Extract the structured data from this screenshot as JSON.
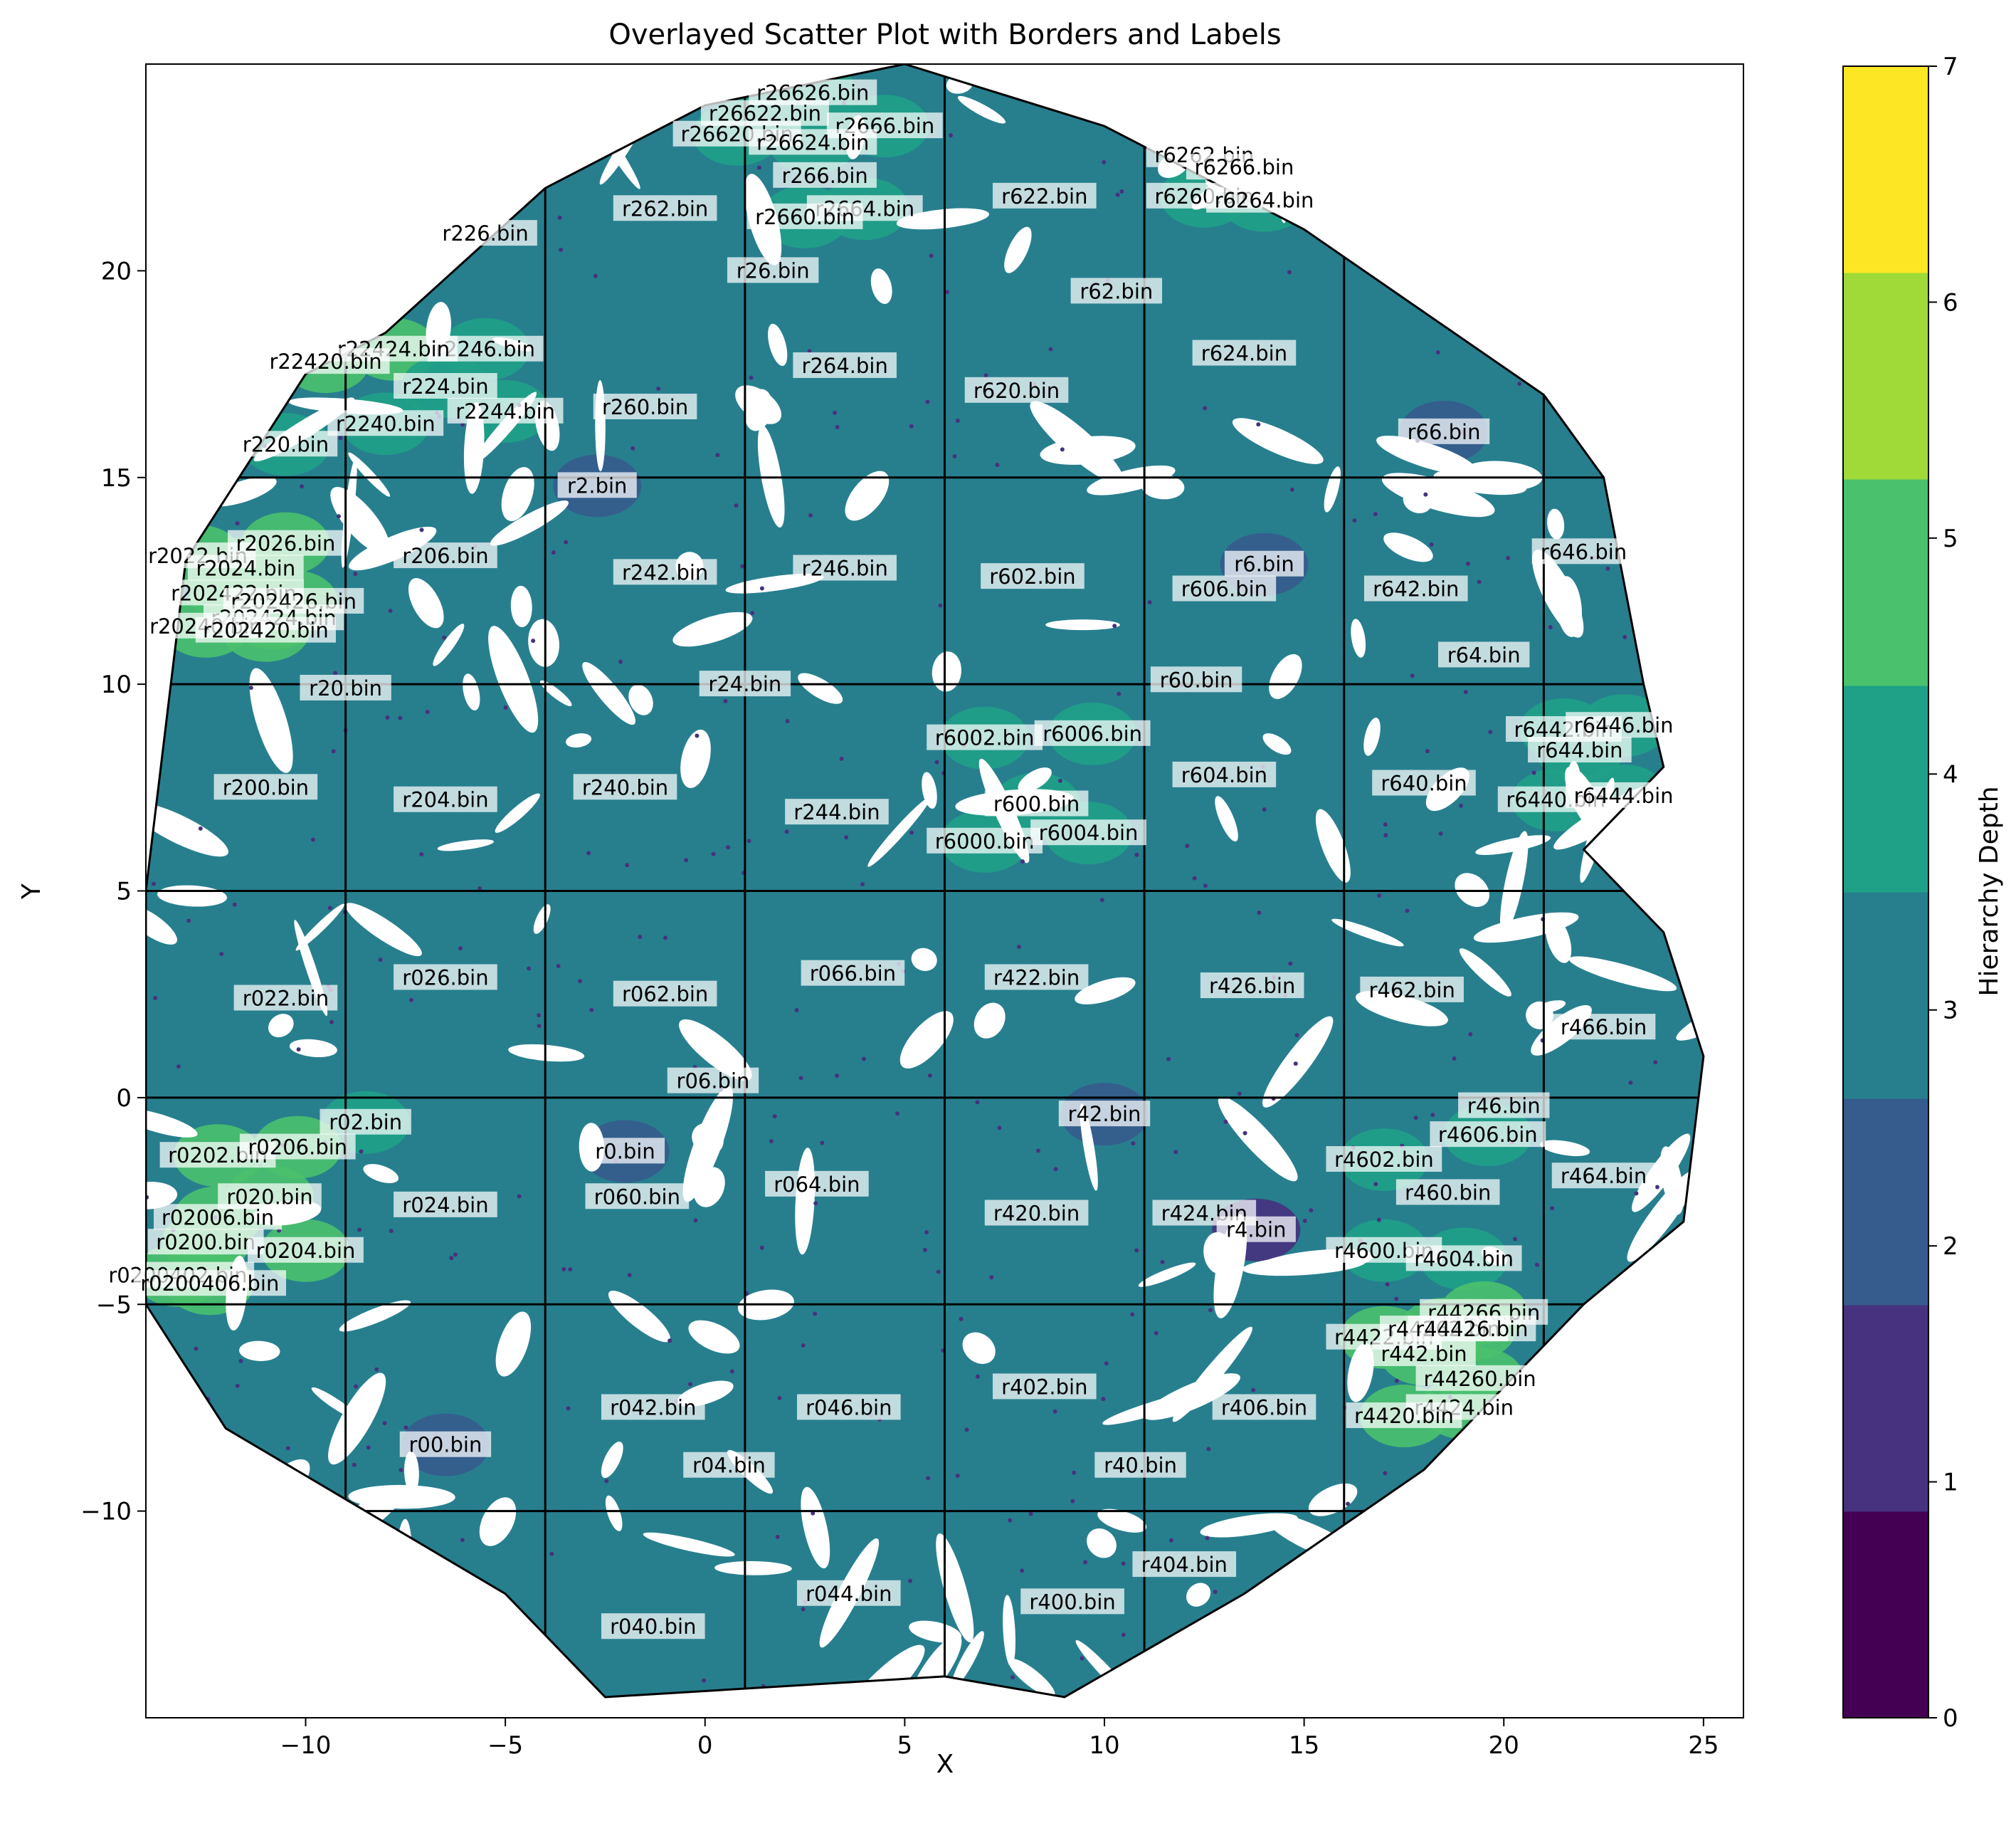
{
  "chart_data": {
    "type": "scatter",
    "title": "Overlayed Scatter Plot with Borders and Labels",
    "xlabel": "X",
    "ylabel": "Y",
    "xlim": [
      -14,
      26
    ],
    "ylim": [
      -15,
      25
    ],
    "xticks": [
      -10,
      -5,
      0,
      5,
      10,
      15,
      20,
      25
    ],
    "yticks": [
      -10,
      -5,
      0,
      5,
      10,
      15,
      20
    ],
    "xtick_labels": [
      "−10",
      "−5",
      "0",
      "5",
      "10",
      "15",
      "20",
      "25"
    ],
    "ytick_labels": [
      "−10",
      "−5",
      "0",
      "5",
      "10",
      "15",
      "20"
    ],
    "grid": false,
    "colorbar": {
      "label": "Hierarchy Depth",
      "colormap": "viridis",
      "range": [
        0,
        7
      ],
      "ticks": [
        0,
        1,
        2,
        3,
        4,
        5,
        6,
        7
      ],
      "tick_labels": [
        "0",
        "1",
        "2",
        "3",
        "4",
        "5",
        "6",
        "7"
      ],
      "bands": [
        "#440154",
        "#46327e",
        "#365c8d",
        "#277f8e",
        "#1fa187",
        "#4ac16d",
        "#a0da39",
        "#fde725"
      ]
    },
    "depth_colors": {
      "1": "#46327e",
      "2": "#365c8d",
      "3": "#277f8e",
      "4": "#1fa187",
      "5": "#4ac16d"
    },
    "border_x": [
      -9,
      -4,
      1,
      6,
      11,
      16,
      21
    ],
    "border_y": [
      15,
      10,
      5,
      0,
      -5,
      -10
    ],
    "hull": [
      [
        -14,
        5
      ],
      [
        -13,
        13
      ],
      [
        -10,
        17.5
      ],
      [
        -8,
        18.5
      ],
      [
        -4,
        22
      ],
      [
        0,
        24
      ],
      [
        5,
        25
      ],
      [
        10,
        23.5
      ],
      [
        13,
        22
      ],
      [
        15,
        21
      ],
      [
        21,
        17
      ],
      [
        22.5,
        15
      ],
      [
        23.5,
        10
      ],
      [
        24,
        8
      ],
      [
        22,
        6
      ],
      [
        24,
        4
      ],
      [
        25,
        1
      ],
      [
        24.5,
        -3
      ],
      [
        22,
        -5
      ],
      [
        18,
        -9
      ],
      [
        13.5,
        -12
      ],
      [
        9,
        -14.5
      ],
      [
        6,
        -14
      ],
      [
        -2.5,
        -14.5
      ],
      [
        -5,
        -12
      ],
      [
        -12,
        -8
      ],
      [
        -14,
        -5
      ],
      [
        -14,
        0
      ]
    ],
    "regions": [
      {
        "label": "r26626.bin",
        "x": 2.7,
        "y": 24.3,
        "depth": 4
      },
      {
        "label": "r26622.bin",
        "x": 1.5,
        "y": 23.8,
        "depth": 4
      },
      {
        "label": "r2666.bin",
        "x": 4.5,
        "y": 23.5,
        "depth": 4
      },
      {
        "label": "r26620.bin",
        "x": 0.8,
        "y": 23.3,
        "depth": 4
      },
      {
        "label": "r26624.bin",
        "x": 2.7,
        "y": 23.1,
        "depth": 4
      },
      {
        "label": "r266.bin",
        "x": 3.0,
        "y": 22.3,
        "depth": 3
      },
      {
        "label": "r2664.bin",
        "x": 4.0,
        "y": 21.5,
        "depth": 4
      },
      {
        "label": "r2660.bin",
        "x": 2.5,
        "y": 21.3,
        "depth": 4
      },
      {
        "label": "r262.bin",
        "x": -1.0,
        "y": 21.5,
        "depth": 3
      },
      {
        "label": "r226.bin",
        "x": -5.5,
        "y": 20.9,
        "depth": 3
      },
      {
        "label": "r26.bin",
        "x": 1.7,
        "y": 20.0,
        "depth": 3
      },
      {
        "label": "r622.bin",
        "x": 8.5,
        "y": 21.8,
        "depth": 3
      },
      {
        "label": "r6262.bin",
        "x": 12.5,
        "y": 22.8,
        "depth": 4
      },
      {
        "label": "r6266.bin",
        "x": 13.5,
        "y": 22.5,
        "depth": 4
      },
      {
        "label": "r6260.bin",
        "x": 12.5,
        "y": 21.8,
        "depth": 4
      },
      {
        "label": "r6264.bin",
        "x": 14.0,
        "y": 21.7,
        "depth": 4
      },
      {
        "label": "r62.bin",
        "x": 10.3,
        "y": 19.5,
        "depth": 3
      },
      {
        "label": "r624.bin",
        "x": 13.5,
        "y": 18.0,
        "depth": 3
      },
      {
        "label": "r620.bin",
        "x": 7.8,
        "y": 17.1,
        "depth": 3
      },
      {
        "label": "r264.bin",
        "x": 3.5,
        "y": 17.7,
        "depth": 3
      },
      {
        "label": "r260.bin",
        "x": -1.5,
        "y": 16.7,
        "depth": 3
      },
      {
        "label": "r2246.bin",
        "x": -5.5,
        "y": 18.1,
        "depth": 4
      },
      {
        "label": "r22424.bin",
        "x": -7.8,
        "y": 18.1,
        "depth": 5
      },
      {
        "label": "r22420.bin",
        "x": -9.5,
        "y": 17.8,
        "depth": 5
      },
      {
        "label": "r224.bin",
        "x": -6.5,
        "y": 17.2,
        "depth": 4
      },
      {
        "label": "r2244.bin",
        "x": -5.0,
        "y": 16.6,
        "depth": 4
      },
      {
        "label": "r2240.bin",
        "x": -8.0,
        "y": 16.3,
        "depth": 4
      },
      {
        "label": "r220.bin",
        "x": -10.5,
        "y": 15.8,
        "depth": 4
      },
      {
        "label": "r66.bin",
        "x": 18.5,
        "y": 16.1,
        "depth": 2
      },
      {
        "label": "r2.bin",
        "x": -2.7,
        "y": 14.8,
        "depth": 2
      },
      {
        "label": "r2022.bin",
        "x": -12.7,
        "y": 13.1,
        "depth": 5
      },
      {
        "label": "r2026.bin",
        "x": -10.5,
        "y": 13.4,
        "depth": 5
      },
      {
        "label": "r2024.bin",
        "x": -11.5,
        "y": 12.8,
        "depth": 5
      },
      {
        "label": "r202422.bin",
        "x": -11.8,
        "y": 12.2,
        "depth": 5
      },
      {
        "label": "r202426.bin",
        "x": -10.3,
        "y": 12.0,
        "depth": 5
      },
      {
        "label": "r202424.bin",
        "x": -10.8,
        "y": 11.6,
        "depth": 5
      },
      {
        "label": "r20240.bin",
        "x": -12.5,
        "y": 11.4,
        "depth": 5
      },
      {
        "label": "r202420.bin",
        "x": -11.0,
        "y": 11.3,
        "depth": 5
      },
      {
        "label": "r206.bin",
        "x": -6.5,
        "y": 13.1,
        "depth": 3
      },
      {
        "label": "r242.bin",
        "x": -1.0,
        "y": 12.7,
        "depth": 3
      },
      {
        "label": "r246.bin",
        "x": 3.5,
        "y": 12.8,
        "depth": 3
      },
      {
        "label": "r602.bin",
        "x": 8.2,
        "y": 12.6,
        "depth": 3
      },
      {
        "label": "r6.bin",
        "x": 14.0,
        "y": 12.9,
        "depth": 2
      },
      {
        "label": "r606.bin",
        "x": 13.0,
        "y": 12.3,
        "depth": 3
      },
      {
        "label": "r642.bin",
        "x": 17.8,
        "y": 12.3,
        "depth": 3
      },
      {
        "label": "r646.bin",
        "x": 22.0,
        "y": 13.2,
        "depth": 3
      },
      {
        "label": "r64.bin",
        "x": 19.5,
        "y": 10.7,
        "depth": 3
      },
      {
        "label": "r20.bin",
        "x": -9.0,
        "y": 9.9,
        "depth": 3
      },
      {
        "label": "r24.bin",
        "x": 1.0,
        "y": 10.0,
        "depth": 3
      },
      {
        "label": "r60.bin",
        "x": 12.3,
        "y": 10.1,
        "depth": 3
      },
      {
        "label": "r6002.bin",
        "x": 7.0,
        "y": 8.7,
        "depth": 4
      },
      {
        "label": "r6006.bin",
        "x": 9.7,
        "y": 8.8,
        "depth": 4
      },
      {
        "label": "r6442.bin",
        "x": 21.5,
        "y": 8.9,
        "depth": 4
      },
      {
        "label": "r6446.bin",
        "x": 23.0,
        "y": 9.0,
        "depth": 4
      },
      {
        "label": "r644.bin",
        "x": 21.9,
        "y": 8.4,
        "depth": 4
      },
      {
        "label": "r604.bin",
        "x": 13.0,
        "y": 7.8,
        "depth": 3
      },
      {
        "label": "r640.bin",
        "x": 18.0,
        "y": 7.6,
        "depth": 3
      },
      {
        "label": "r6440.bin",
        "x": 21.3,
        "y": 7.2,
        "depth": 4
      },
      {
        "label": "r6444.bin",
        "x": 23.0,
        "y": 7.3,
        "depth": 4
      },
      {
        "label": "r200.bin",
        "x": -11.0,
        "y": 7.5,
        "depth": 3
      },
      {
        "label": "r204.bin",
        "x": -6.5,
        "y": 7.2,
        "depth": 3
      },
      {
        "label": "r240.bin",
        "x": -2.0,
        "y": 7.5,
        "depth": 3
      },
      {
        "label": "r244.bin",
        "x": 3.3,
        "y": 6.9,
        "depth": 3
      },
      {
        "label": "r600.bin",
        "x": 8.3,
        "y": 7.1,
        "depth": 4
      },
      {
        "label": "r6000.bin",
        "x": 7.0,
        "y": 6.2,
        "depth": 4
      },
      {
        "label": "r6004.bin",
        "x": 9.6,
        "y": 6.4,
        "depth": 4
      },
      {
        "label": "r022.bin",
        "x": -10.5,
        "y": 2.4,
        "depth": 3
      },
      {
        "label": "r026.bin",
        "x": -6.5,
        "y": 2.9,
        "depth": 3
      },
      {
        "label": "r062.bin",
        "x": -1.0,
        "y": 2.5,
        "depth": 3
      },
      {
        "label": "r066.bin",
        "x": 3.7,
        "y": 3.0,
        "depth": 3
      },
      {
        "label": "r422.bin",
        "x": 8.3,
        "y": 2.9,
        "depth": 3
      },
      {
        "label": "r426.bin",
        "x": 13.7,
        "y": 2.7,
        "depth": 3
      },
      {
        "label": "r462.bin",
        "x": 17.7,
        "y": 2.6,
        "depth": 3
      },
      {
        "label": "r466.bin",
        "x": 22.5,
        "y": 1.7,
        "depth": 3
      },
      {
        "label": "r06.bin",
        "x": 0.2,
        "y": 0.4,
        "depth": 3
      },
      {
        "label": "r02.bin",
        "x": -8.5,
        "y": -0.6,
        "depth": 4
      },
      {
        "label": "r0202.bin",
        "x": -12.2,
        "y": -1.4,
        "depth": 5
      },
      {
        "label": "r0206.bin",
        "x": -10.2,
        "y": -1.2,
        "depth": 5
      },
      {
        "label": "r020.bin",
        "x": -10.9,
        "y": -2.4,
        "depth": 5
      },
      {
        "label": "r02006.bin",
        "x": -12.2,
        "y": -2.9,
        "depth": 5
      },
      {
        "label": "r0200.bin",
        "x": -12.5,
        "y": -3.5,
        "depth": 5
      },
      {
        "label": "r0204.bin",
        "x": -10.0,
        "y": -3.7,
        "depth": 5
      },
      {
        "label": "r0200402.bin",
        "x": -13.2,
        "y": -4.3,
        "depth": 5
      },
      {
        "label": "r0200406.bin",
        "x": -12.4,
        "y": -4.5,
        "depth": 5
      },
      {
        "label": "r0.bin",
        "x": -2.0,
        "y": -1.3,
        "depth": 2
      },
      {
        "label": "r42.bin",
        "x": 10.0,
        "y": -0.4,
        "depth": 2
      },
      {
        "label": "r46.bin",
        "x": 20.0,
        "y": -0.2,
        "depth": 3
      },
      {
        "label": "r4606.bin",
        "x": 19.6,
        "y": -0.9,
        "depth": 4
      },
      {
        "label": "r4602.bin",
        "x": 17.0,
        "y": -1.5,
        "depth": 4
      },
      {
        "label": "r464.bin",
        "x": 22.5,
        "y": -1.9,
        "depth": 3
      },
      {
        "label": "r024.bin",
        "x": -6.5,
        "y": -2.6,
        "depth": 3
      },
      {
        "label": "r060.bin",
        "x": -1.7,
        "y": -2.4,
        "depth": 3
      },
      {
        "label": "r064.bin",
        "x": 2.8,
        "y": -2.1,
        "depth": 3
      },
      {
        "label": "r420.bin",
        "x": 8.3,
        "y": -2.8,
        "depth": 3
      },
      {
        "label": "r424.bin",
        "x": 12.5,
        "y": -2.8,
        "depth": 3
      },
      {
        "label": "r4.bin",
        "x": 13.8,
        "y": -3.2,
        "depth": 1
      },
      {
        "label": "r460.bin",
        "x": 18.6,
        "y": -2.3,
        "depth": 3
      },
      {
        "label": "r4600.bin",
        "x": 17.0,
        "y": -3.7,
        "depth": 4
      },
      {
        "label": "r4604.bin",
        "x": 19.0,
        "y": -3.9,
        "depth": 4
      },
      {
        "label": "r44266.bin",
        "x": 19.5,
        "y": -5.2,
        "depth": 5
      },
      {
        "label": "r4422.bin",
        "x": 17.0,
        "y": -5.8,
        "depth": 5
      },
      {
        "label": "r44262.bin",
        "x": 18.5,
        "y": -5.6,
        "depth": 5
      },
      {
        "label": "r44426.bin",
        "x": 19.2,
        "y": -5.6,
        "depth": 5
      },
      {
        "label": "r442.bin",
        "x": 18.0,
        "y": -6.2,
        "depth": 5
      },
      {
        "label": "r44260.bin",
        "x": 19.4,
        "y": -6.8,
        "depth": 5
      },
      {
        "label": "r4424.bin",
        "x": 19.0,
        "y": -7.5,
        "depth": 5
      },
      {
        "label": "r4420.bin",
        "x": 17.5,
        "y": -7.7,
        "depth": 5
      },
      {
        "label": "r042.bin",
        "x": -1.3,
        "y": -7.5,
        "depth": 3
      },
      {
        "label": "r046.bin",
        "x": 3.6,
        "y": -7.5,
        "depth": 3
      },
      {
        "label": "r402.bin",
        "x": 8.5,
        "y": -7.0,
        "depth": 3
      },
      {
        "label": "r406.bin",
        "x": 14.0,
        "y": -7.5,
        "depth": 3
      },
      {
        "label": "r00.bin",
        "x": -6.5,
        "y": -8.4,
        "depth": 2
      },
      {
        "label": "r04.bin",
        "x": 0.6,
        "y": -8.9,
        "depth": 3
      },
      {
        "label": "r40.bin",
        "x": 10.9,
        "y": -8.9,
        "depth": 3
      },
      {
        "label": "r404.bin",
        "x": 12.0,
        "y": -11.3,
        "depth": 3
      },
      {
        "label": "r040.bin",
        "x": -1.3,
        "y": -12.8,
        "depth": 3
      },
      {
        "label": "r044.bin",
        "x": 3.6,
        "y": -12.0,
        "depth": 3
      },
      {
        "label": "r400.bin",
        "x": 9.2,
        "y": -12.2,
        "depth": 3
      }
    ]
  }
}
